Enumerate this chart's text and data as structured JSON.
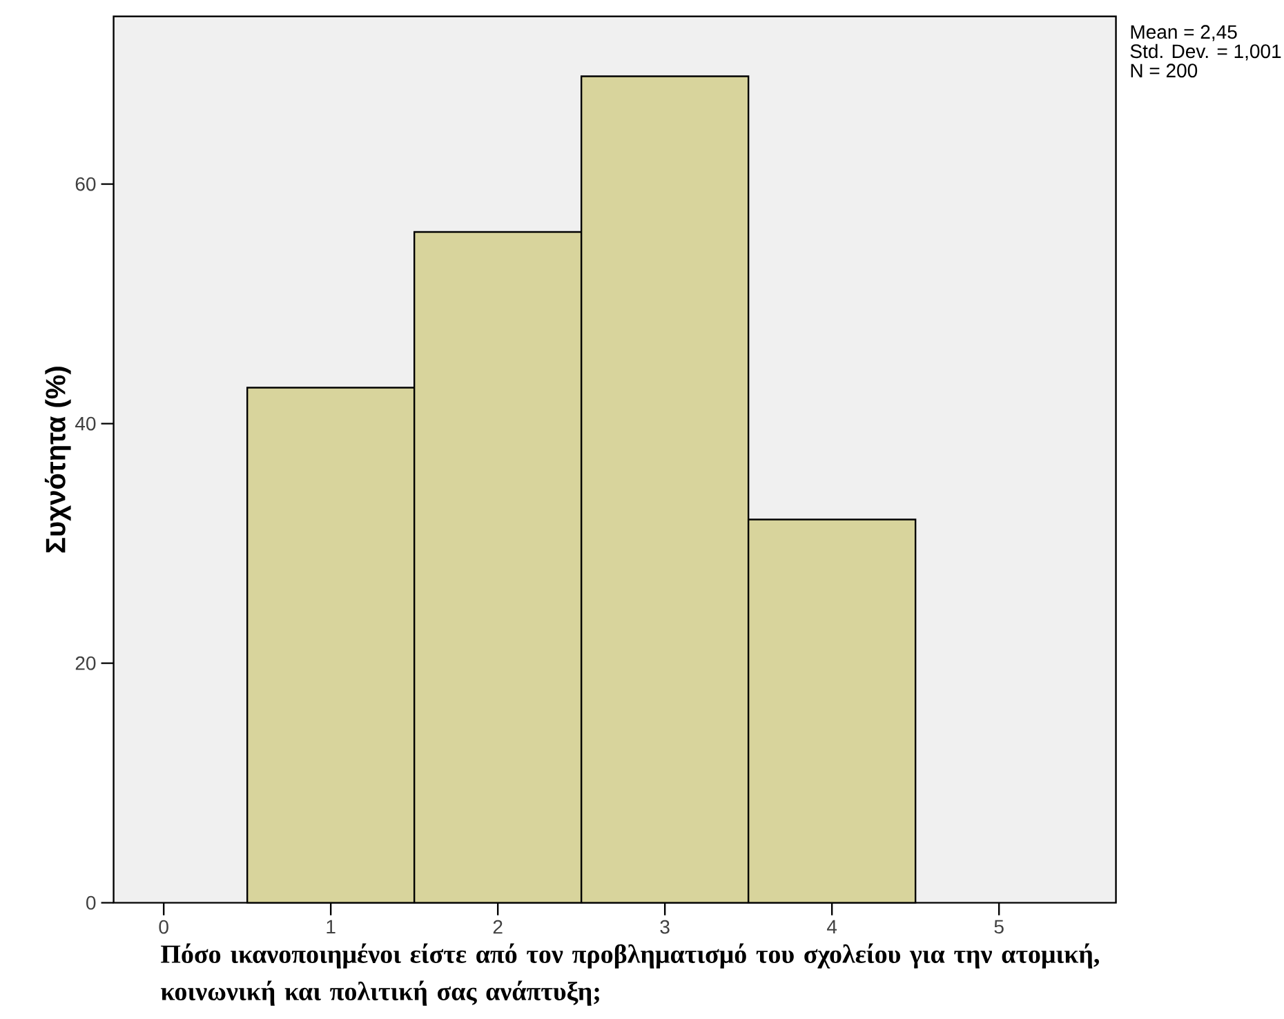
{
  "chart_data": {
    "type": "histogram",
    "xlabel": "Πόσο ικανοποιημένοι είστε από τον προβληματισμό του σχολείου για την ατομική, κοινωνική και πολιτική σας ανάπτυξη;",
    "ylabel": "Συχνότητα (%)",
    "bins": [
      0.5,
      1.5,
      2.5,
      3.5,
      4.5
    ],
    "values": [
      43,
      56,
      69,
      32
    ],
    "color": "#d8d49c",
    "xlim": [
      -0.3,
      5.7
    ],
    "ylim": [
      0,
      74
    ],
    "xticks": [
      0,
      1,
      2,
      3,
      4,
      5
    ],
    "yticks": [
      0,
      20,
      40,
      60
    ],
    "grid": false,
    "annotations": [
      "Mean = 2,45",
      "Std. Dev. = 1,001",
      "N = 200"
    ]
  }
}
